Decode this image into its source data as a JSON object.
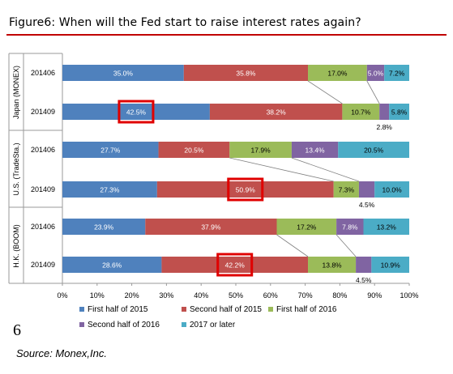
{
  "page": {
    "title": "Figure6:  When will the Fed start to raise interest rates again?",
    "page_number": "6",
    "source": "Source: Monex,Inc."
  },
  "chart_data": {
    "type": "bar",
    "orientation": "horizontal",
    "stacked": true,
    "xlim": [
      0,
      100
    ],
    "x_ticks": [
      "0%",
      "10%",
      "20%",
      "30%",
      "40%",
      "50%",
      "60%",
      "70%",
      "80%",
      "90%",
      "100%"
    ],
    "groups": [
      {
        "label": "Japan (MONEX)",
        "rows": [
          "201406",
          "201409"
        ]
      },
      {
        "label": "U.S. (TradeSta.)",
        "rows": [
          "201406",
          "201409"
        ]
      },
      {
        "label": "H.K. (BOOM)",
        "rows": [
          "201406",
          "201409"
        ]
      }
    ],
    "categories": [
      "201406",
      "201409",
      "201406",
      "201409",
      "201406",
      "201409"
    ],
    "series": [
      {
        "name": "First half of 2015",
        "color": "#4f81bd",
        "values": [
          35.0,
          42.5,
          27.7,
          27.3,
          23.9,
          28.6
        ]
      },
      {
        "name": "Second half of 2015",
        "color": "#c0504d",
        "values": [
          35.8,
          38.2,
          20.5,
          50.9,
          37.9,
          42.2
        ]
      },
      {
        "name": "First half of 2016",
        "color": "#9bbb59",
        "values": [
          17.0,
          10.7,
          17.9,
          7.3,
          17.2,
          13.8
        ]
      },
      {
        "name": "Second half of 2016",
        "color": "#8064a2",
        "values": [
          5.0,
          2.8,
          13.4,
          4.5,
          7.8,
          4.5
        ]
      },
      {
        "name": "2017 or later",
        "color": "#4bacc6",
        "values": [
          7.2,
          5.8,
          20.5,
          10.0,
          13.2,
          10.9
        ]
      }
    ],
    "value_labels": [
      [
        "35.0%",
        "35.8%",
        "17.0%",
        "5.0%",
        "7.2%"
      ],
      [
        "42.5%",
        "38.2%",
        "10.7%",
        "2.8%",
        "5.8%"
      ],
      [
        "27.7%",
        "20.5%",
        "17.9%",
        "13.4%",
        "20.5%"
      ],
      [
        "27.3%",
        "50.9%",
        "7.3%",
        "4.5%",
        "10.0%"
      ],
      [
        "23.9%",
        "37.9%",
        "17.2%",
        "7.8%",
        "13.2%"
      ],
      [
        "28.6%",
        "42.2%",
        "13.8%",
        "4.5%",
        "10.9%"
      ]
    ],
    "below_bar_labels": [
      [
        1,
        3
      ],
      [
        3,
        3
      ],
      [
        5,
        3
      ]
    ],
    "highlighted": [
      [
        1,
        0
      ],
      [
        3,
        1
      ],
      [
        5,
        1
      ]
    ],
    "highlight_color": "#e00000",
    "legend": [
      "First half of 2015",
      "Second half of 2015",
      "First half of 2016",
      "Second half of 2016",
      "2017 or later"
    ],
    "legend_position": "bottom",
    "grid": false
  }
}
